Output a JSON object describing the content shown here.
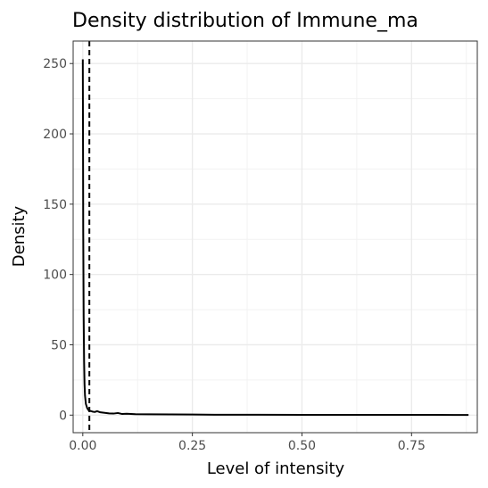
{
  "chart_data": {
    "type": "line",
    "title": "Density distribution of Immune_ma",
    "xlabel": "Level of intensity",
    "ylabel": "Density",
    "xlim": [
      -0.022,
      0.9
    ],
    "ylim": [
      -12.5,
      266
    ],
    "x_ticks": [
      0.0,
      0.25,
      0.5,
      0.75
    ],
    "x_tick_labels": [
      "0.00",
      "0.25",
      "0.50",
      "0.75"
    ],
    "y_ticks": [
      0,
      50,
      100,
      150,
      200,
      250
    ],
    "y_tick_labels": [
      "0",
      "50",
      "100",
      "150",
      "200",
      "250"
    ],
    "grid": true,
    "legend": "none",
    "series": [
      {
        "style": "solid",
        "color": "#000000",
        "x": [
          0.0,
          0.0005,
          0.001,
          0.002,
          0.003,
          0.004,
          0.005,
          0.007,
          0.01,
          0.013,
          0.017,
          0.022,
          0.027,
          0.033,
          0.04,
          0.05,
          0.06,
          0.07,
          0.08,
          0.09,
          0.1,
          0.12,
          0.15,
          0.2,
          0.25,
          0.3,
          0.4,
          0.5,
          0.6,
          0.7,
          0.8,
          0.88
        ],
        "y": [
          253,
          200,
          130,
          70,
          38,
          22,
          14,
          8,
          5,
          3.5,
          3,
          2.5,
          2.2,
          2.8,
          2,
          1.6,
          1.2,
          1.1,
          1.5,
          0.8,
          1.0,
          0.7,
          0.6,
          0.5,
          0.4,
          0.3,
          0.25,
          0.2,
          0.2,
          0.15,
          0.15,
          0.1
        ]
      }
    ],
    "reference_lines": [
      {
        "orientation": "vertical",
        "x": 0.015,
        "style": "dashed",
        "color": "#000000"
      }
    ]
  }
}
